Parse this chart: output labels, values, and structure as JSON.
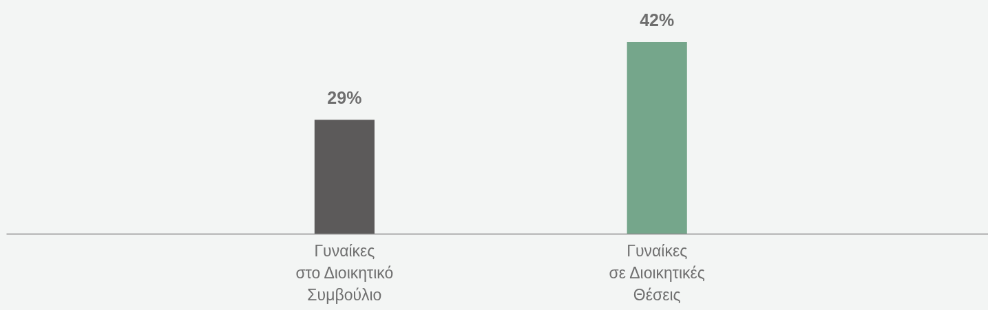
{
  "chart_data": {
    "type": "bar",
    "categories": [
      "Γυναίκες\nστο Διοικητικό\nΣυμβούλιο",
      "Γυναίκες\nσε Διοικητικές\nΘέσεις"
    ],
    "values": [
      29,
      42
    ],
    "value_labels": [
      "29%",
      "42%"
    ],
    "colors": [
      "#5c5a5a",
      "#75a68b"
    ],
    "ylim": [
      10,
      49
    ],
    "tick_labels": "x"
  }
}
